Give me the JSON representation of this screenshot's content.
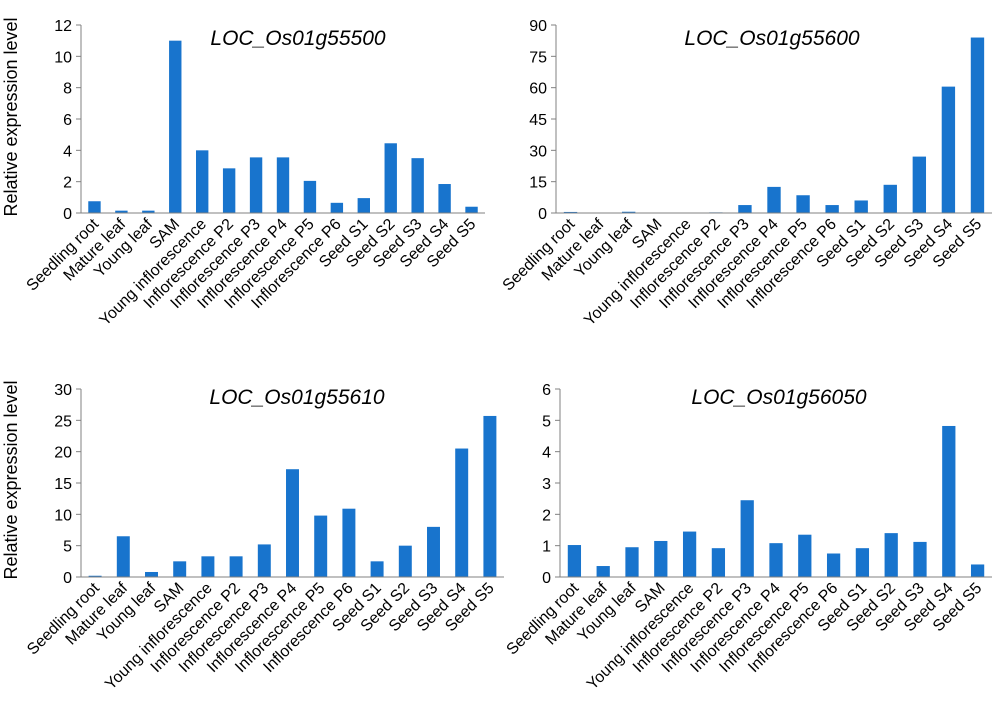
{
  "figure": {
    "ylabel": "Relative expression level",
    "bar_color": "#1874CD",
    "axis_color": "#808080"
  },
  "chart_data": [
    {
      "type": "bar",
      "title": "LOC_Os01g55500",
      "xlabel": "",
      "ylabel": "Relative expression level",
      "ylim": [
        0,
        12
      ],
      "yticks": [
        0,
        2,
        4,
        6,
        8,
        10,
        12
      ],
      "categories": [
        "Seedling root",
        "Mature leaf",
        "Young leaf",
        "SAM",
        "Young inflorescence",
        "Inflorescence P2",
        "Inflorescence P3",
        "Inflorescence P4",
        "Inflorescence P5",
        "Inflorescence P6",
        "Seed S1",
        "Seed S2",
        "Seed S3",
        "Seed S4",
        "Seed S5"
      ],
      "values": [
        0.75,
        0.15,
        0.15,
        11.0,
        4.0,
        2.85,
        3.55,
        3.55,
        2.05,
        0.65,
        0.95,
        4.45,
        3.5,
        1.85,
        0.4
      ]
    },
    {
      "type": "bar",
      "title": "LOC_Os01g55600",
      "xlabel": "",
      "ylabel": "",
      "ylim": [
        0,
        90
      ],
      "yticks": [
        0,
        15,
        30,
        45,
        60,
        75,
        90
      ],
      "categories": [
        "Seedling root",
        "Mature leaf",
        "Young leaf",
        "SAM",
        "Young inflorescence",
        "Inflorescence P2",
        "Inflorescence P3",
        "Inflorescence P4",
        "Inflorescence P5",
        "Inflorescence P6",
        "Seed S1",
        "Seed S2",
        "Seed S3",
        "Seed S4",
        "Seed S5"
      ],
      "values": [
        0.5,
        0.2,
        0.6,
        0.2,
        0.2,
        0.3,
        3.8,
        12.5,
        8.5,
        3.8,
        6.0,
        13.5,
        27.0,
        60.5,
        84.0
      ]
    },
    {
      "type": "bar",
      "title": "LOC_Os01g55610",
      "xlabel": "",
      "ylabel": "Relative expression level",
      "ylim": [
        0,
        30
      ],
      "yticks": [
        0,
        5,
        10,
        15,
        20,
        25,
        30
      ],
      "categories": [
        "Seedling root",
        "Mature leaf",
        "Young leaf",
        "SAM",
        "Young inflorescence",
        "Inflorescence P2",
        "Inflorescence P3",
        "Inflorescence P4",
        "Inflorescence P5",
        "Inflorescence P6",
        "Seed S1",
        "Seed S2",
        "Seed S3",
        "Seed S4",
        "Seed S5"
      ],
      "values": [
        0.2,
        6.5,
        0.8,
        2.5,
        3.3,
        3.3,
        5.2,
        17.2,
        9.8,
        10.9,
        2.5,
        5.0,
        8.0,
        20.5,
        25.7
      ]
    },
    {
      "type": "bar",
      "title": "LOC_Os01g56050",
      "xlabel": "",
      "ylabel": "",
      "ylim": [
        0,
        6
      ],
      "yticks": [
        0,
        1,
        2,
        3,
        4,
        5,
        6
      ],
      "categories": [
        "Seedling root",
        "Mature leaf",
        "Young leaf",
        "SAM",
        "Young inflorescence",
        "Inflorescence P2",
        "Inflorescence P3",
        "Inflorescence P4",
        "Inflorescence P5",
        "Inflorescence P6",
        "Seed S1",
        "Seed S2",
        "Seed S3",
        "Seed S4",
        "Seed S5"
      ],
      "values": [
        1.02,
        0.35,
        0.95,
        1.15,
        1.45,
        0.92,
        2.45,
        1.08,
        1.35,
        0.75,
        0.92,
        1.4,
        1.12,
        4.82,
        0.4
      ]
    }
  ]
}
